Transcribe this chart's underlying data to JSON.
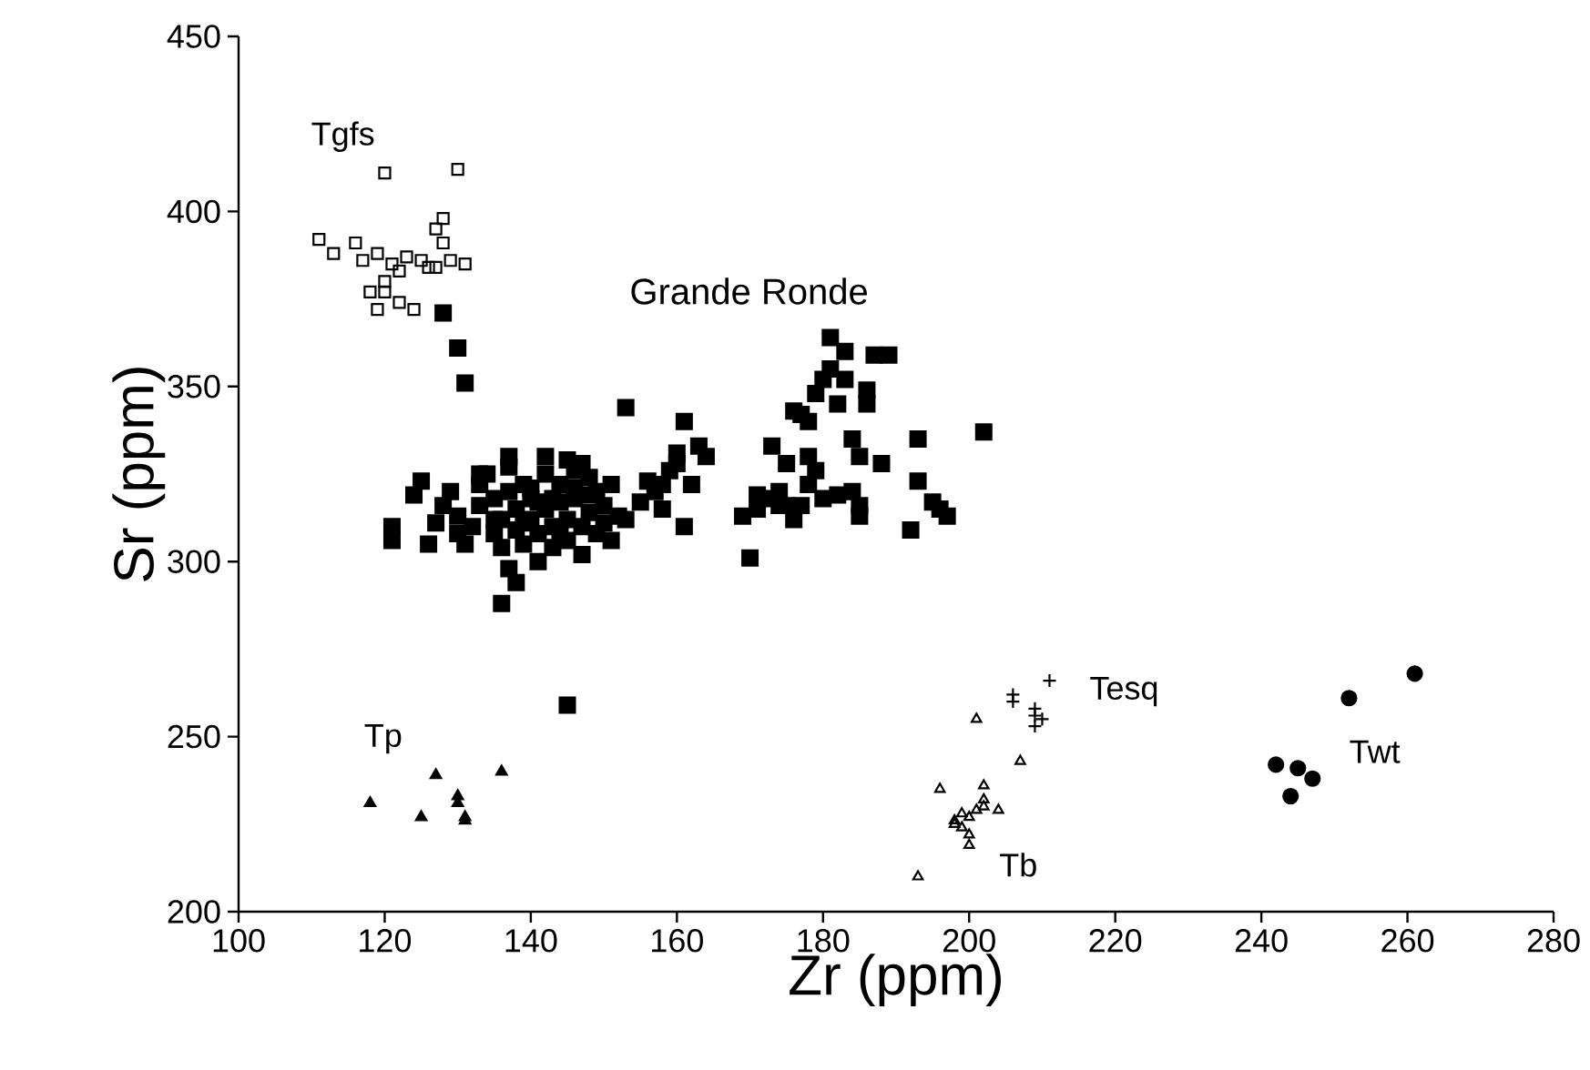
{
  "chart_data": {
    "type": "scatter",
    "xlabel": "Zr (ppm)",
    "ylabel": "Sr (ppm)",
    "xlim": [
      100,
      280
    ],
    "ylim": [
      200,
      450
    ],
    "xticks": [
      100,
      120,
      140,
      160,
      180,
      200,
      220,
      240,
      260,
      280
    ],
    "yticks": [
      200,
      250,
      300,
      350,
      400,
      450
    ],
    "grid": false,
    "series": [
      {
        "name": "Tgfs",
        "color": "#000000",
        "marker": "square",
        "x": [
          120,
          130,
          111,
          113,
          116,
          117,
          119,
          121,
          123,
          125,
          127,
          129,
          128,
          127,
          128,
          118,
          120,
          122,
          124,
          120,
          122,
          119,
          126,
          131
        ],
        "values": [
          411,
          412,
          392,
          388,
          391,
          386,
          388,
          385,
          387,
          386,
          384,
          386,
          391,
          395,
          398,
          377,
          377,
          374,
          372,
          380,
          383,
          372,
          384,
          385
        ]
      },
      {
        "name": "Grande Ronde",
        "color": "#000000",
        "marker": "square",
        "x": [
          128,
          130,
          131,
          145,
          136,
          121,
          121,
          124,
          125,
          126,
          127,
          128,
          129,
          130,
          130,
          131,
          132,
          133,
          133,
          134,
          135,
          135,
          136,
          136,
          137,
          137,
          137,
          138,
          138,
          139,
          139,
          140,
          140,
          141,
          141,
          142,
          142,
          143,
          143,
          144,
          144,
          145,
          145,
          145,
          146,
          146,
          147,
          147,
          148,
          148,
          149,
          149,
          150,
          150,
          151,
          151,
          152,
          137,
          138,
          133,
          140,
          142,
          147,
          143,
          146,
          139,
          141,
          144,
          148,
          135,
          153,
          153,
          155,
          157,
          158,
          159,
          160,
          160,
          161,
          161,
          162,
          163,
          164,
          158,
          156,
          169,
          170,
          171,
          172,
          173,
          174,
          175,
          176,
          177,
          178,
          178,
          179,
          179,
          180,
          181,
          181,
          182,
          183,
          183,
          184,
          185,
          185,
          186,
          186,
          187,
          189,
          192,
          193,
          193,
          195,
          196,
          197,
          202,
          176,
          180,
          182,
          177,
          174,
          178,
          184,
          175,
          171,
          185,
          188
        ],
        "values": [
          371,
          361,
          351,
          259,
          288,
          310,
          306,
          319,
          323,
          305,
          311,
          316,
          320,
          308,
          313,
          305,
          310,
          316,
          322,
          325,
          318,
          308,
          312,
          304,
          330,
          327,
          320,
          315,
          309,
          305,
          322,
          312,
          318,
          300,
          308,
          325,
          315,
          310,
          304,
          322,
          317,
          312,
          306,
          329,
          326,
          318,
          310,
          302,
          324,
          314,
          320,
          308,
          316,
          311,
          322,
          306,
          313,
          298,
          294,
          325,
          321,
          330,
          328,
          318,
          321,
          311,
          317,
          308,
          319,
          312,
          344,
          312,
          317,
          320,
          315,
          326,
          328,
          331,
          340,
          310,
          322,
          333,
          330,
          322,
          323,
          313,
          301,
          315,
          318,
          333,
          320,
          316,
          343,
          342,
          340,
          330,
          326,
          348,
          352,
          364,
          355,
          345,
          352,
          360,
          320,
          330,
          316,
          349,
          345,
          359,
          359,
          309,
          335,
          323,
          317,
          315,
          313,
          337,
          312,
          318,
          319,
          316,
          316,
          322,
          335,
          328,
          319,
          313,
          328
        ]
      },
      {
        "name": "Tp",
        "color": "#000000",
        "marker": "triangle",
        "x": [
          118,
          125,
          127,
          130,
          130,
          131,
          131,
          136
        ],
        "values": [
          231,
          227,
          239,
          233,
          231,
          227,
          226,
          240
        ]
      },
      {
        "name": "Tb",
        "color": "#000000",
        "marker": "triangle",
        "x": [
          193,
          196,
          198,
          199,
          199,
          200,
          200,
          201,
          202,
          202,
          202,
          204,
          201,
          207,
          198,
          200
        ],
        "values": [
          210,
          235,
          226,
          224,
          228,
          222,
          219,
          229,
          232,
          236,
          230,
          229,
          255,
          243,
          225,
          227
        ]
      },
      {
        "name": "Tesq",
        "color": "#000000",
        "marker": "cross",
        "x": [
          206,
          206,
          209,
          209,
          210,
          211,
          209
        ],
        "values": [
          260,
          262,
          253,
          256,
          255,
          266,
          258
        ]
      },
      {
        "name": "Twt",
        "color": "#000000",
        "marker": "circle",
        "x": [
          242,
          244,
          245,
          247,
          252,
          261
        ],
        "values": [
          242,
          233,
          241,
          238,
          261,
          268
        ]
      }
    ]
  }
}
